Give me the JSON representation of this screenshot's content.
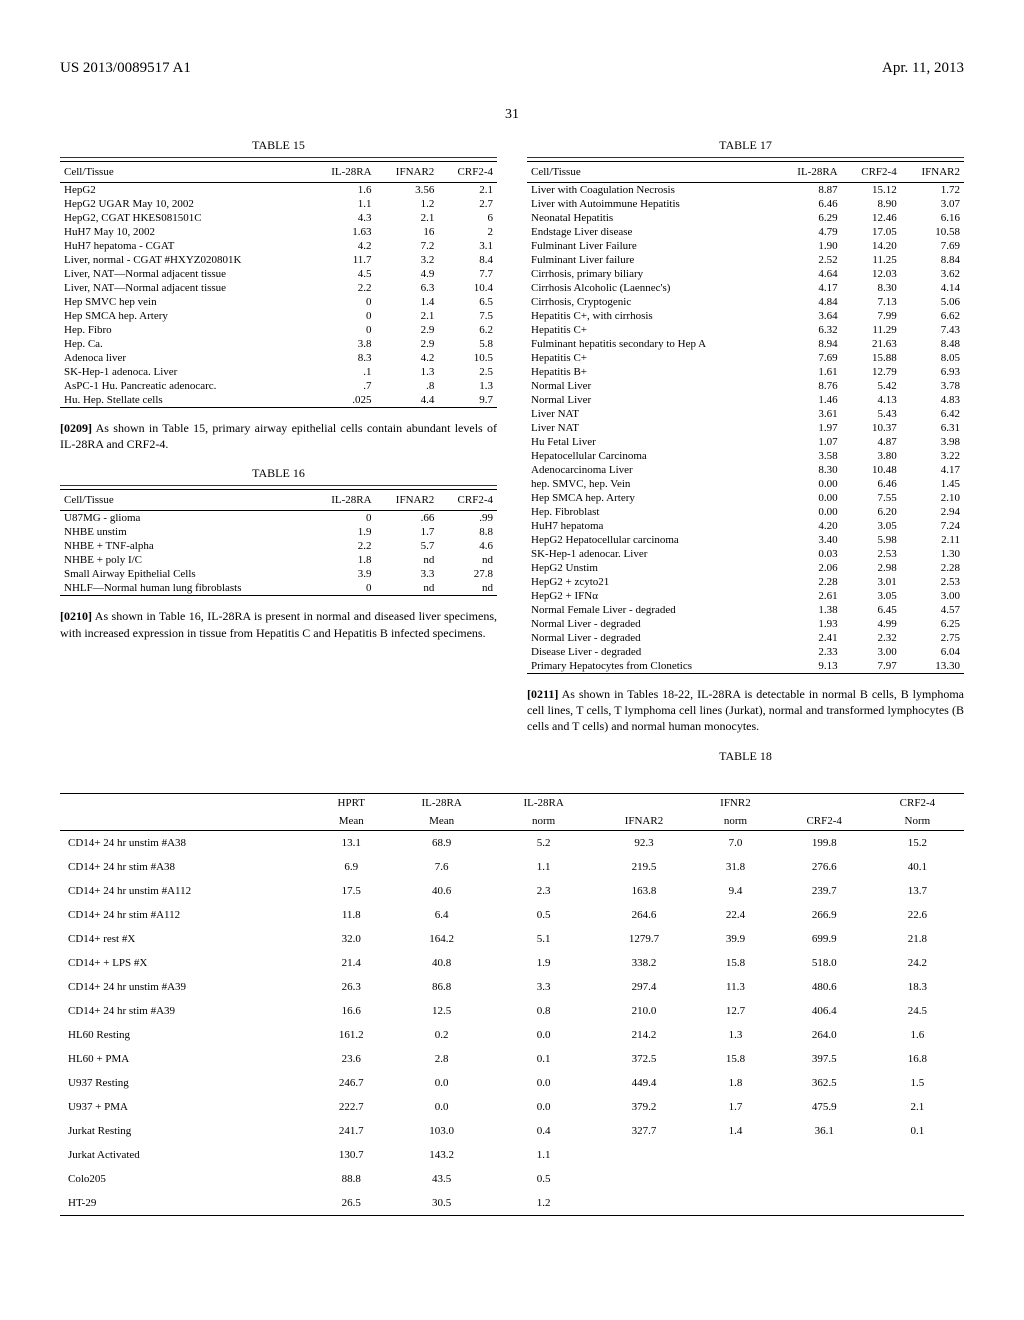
{
  "header": {
    "left": "US 2013/0089517 A1",
    "right": "Apr. 11, 2013"
  },
  "page_number": "31",
  "table15": {
    "title": "TABLE 15",
    "columns": [
      "Cell/Tissue",
      "IL-28RA",
      "IFNAR2",
      "CRF2-4"
    ],
    "rows": [
      [
        "HepG2",
        "1.6",
        "3.56",
        "2.1"
      ],
      [
        "HepG2 UGAR May 10, 2002",
        "1.1",
        "1.2",
        "2.7"
      ],
      [
        "HepG2, CGAT HKES081501C",
        "4.3",
        "2.1",
        "6"
      ],
      [
        "HuH7 May 10, 2002",
        "1.63",
        "16",
        "2"
      ],
      [
        "HuH7 hepatoma - CGAT",
        "4.2",
        "7.2",
        "3.1"
      ],
      [
        "Liver, normal - CGAT #HXYZ020801K",
        "11.7",
        "3.2",
        "8.4"
      ],
      [
        "Liver, NAT—Normal adjacent tissue",
        "4.5",
        "4.9",
        "7.7"
      ],
      [
        "Liver, NAT—Normal adjacent tissue",
        "2.2",
        "6.3",
        "10.4"
      ],
      [
        "Hep SMVC hep vein",
        "0",
        "1.4",
        "6.5"
      ],
      [
        "Hep SMCA hep. Artery",
        "0",
        "2.1",
        "7.5"
      ],
      [
        "Hep. Fibro",
        "0",
        "2.9",
        "6.2"
      ],
      [
        "Hep. Ca.",
        "3.8",
        "2.9",
        "5.8"
      ],
      [
        "Adenoca liver",
        "8.3",
        "4.2",
        "10.5"
      ],
      [
        "SK-Hep-1 adenoca. Liver",
        ".1",
        "1.3",
        "2.5"
      ],
      [
        "AsPC-1 Hu. Pancreatic adenocarc.",
        ".7",
        ".8",
        "1.3"
      ],
      [
        "Hu. Hep. Stellate cells",
        ".025",
        "4.4",
        "9.7"
      ]
    ]
  },
  "para209": {
    "num": "[0209]",
    "text": "As shown in Table 15, primary airway epithelial cells contain abundant levels of IL-28RA and CRF2-4."
  },
  "table16": {
    "title": "TABLE 16",
    "columns": [
      "Cell/Tissue",
      "IL-28RA",
      "IFNAR2",
      "CRF2-4"
    ],
    "rows": [
      [
        "U87MG - glioma",
        "0",
        ".66",
        ".99"
      ],
      [
        "NHBE unstim",
        "1.9",
        "1.7",
        "8.8"
      ],
      [
        "NHBE + TNF-alpha",
        "2.2",
        "5.7",
        "4.6"
      ],
      [
        "NHBE + poly I/C",
        "1.8",
        "nd",
        "nd"
      ],
      [
        "Small Airway Epithelial Cells",
        "3.9",
        "3.3",
        "27.8"
      ],
      [
        "NHLF—Normal human lung fibroblasts",
        "0",
        "nd",
        "nd"
      ]
    ]
  },
  "para210": {
    "num": "[0210]",
    "text": "As shown in Table 16, IL-28RA is present in normal and diseased liver specimens, with increased expression in tissue from Hepatitis C and Hepatitis B infected specimens."
  },
  "table17": {
    "title": "TABLE 17",
    "columns": [
      "Cell/Tissue",
      "IL-28RA",
      "CRF2-4",
      "IFNAR2"
    ],
    "rows": [
      [
        "Liver with Coagulation Necrosis",
        "8.87",
        "15.12",
        "1.72"
      ],
      [
        "Liver with Autoimmune Hepatitis",
        "6.46",
        "8.90",
        "3.07"
      ],
      [
        "Neonatal Hepatitis",
        "6.29",
        "12.46",
        "6.16"
      ],
      [
        "Endstage Liver disease",
        "4.79",
        "17.05",
        "10.58"
      ],
      [
        "Fulminant Liver Failure",
        "1.90",
        "14.20",
        "7.69"
      ],
      [
        "Fulminant Liver failure",
        "2.52",
        "11.25",
        "8.84"
      ],
      [
        "Cirrhosis, primary biliary",
        "4.64",
        "12.03",
        "3.62"
      ],
      [
        "Cirrhosis Alcoholic (Laennec's)",
        "4.17",
        "8.30",
        "4.14"
      ],
      [
        "Cirrhosis, Cryptogenic",
        "4.84",
        "7.13",
        "5.06"
      ],
      [
        "Hepatitis C+, with cirrhosis",
        "3.64",
        "7.99",
        "6.62"
      ],
      [
        "Hepatitis C+",
        "6.32",
        "11.29",
        "7.43"
      ],
      [
        "Fulminant hepatitis secondary to Hep A",
        "8.94",
        "21.63",
        "8.48"
      ],
      [
        "Hepatitis C+",
        "7.69",
        "15.88",
        "8.05"
      ],
      [
        "Hepatitis B+",
        "1.61",
        "12.79",
        "6.93"
      ],
      [
        "Normal Liver",
        "8.76",
        "5.42",
        "3.78"
      ],
      [
        "Normal Liver",
        "1.46",
        "4.13",
        "4.83"
      ],
      [
        "Liver NAT",
        "3.61",
        "5.43",
        "6.42"
      ],
      [
        "Liver NAT",
        "1.97",
        "10.37",
        "6.31"
      ],
      [
        "Hu Fetal Liver",
        "1.07",
        "4.87",
        "3.98"
      ],
      [
        "Hepatocellular Carcinoma",
        "3.58",
        "3.80",
        "3.22"
      ],
      [
        "Adenocarcinoma Liver",
        "8.30",
        "10.48",
        "4.17"
      ],
      [
        "hep. SMVC, hep. Vein",
        "0.00",
        "6.46",
        "1.45"
      ],
      [
        "Hep SMCA hep. Artery",
        "0.00",
        "7.55",
        "2.10"
      ],
      [
        "Hep. Fibroblast",
        "0.00",
        "6.20",
        "2.94"
      ],
      [
        "HuH7 hepatoma",
        "4.20",
        "3.05",
        "7.24"
      ],
      [
        "HepG2 Hepatocellular carcinoma",
        "3.40",
        "5.98",
        "2.11"
      ],
      [
        "SK-Hep-1 adenocar. Liver",
        "0.03",
        "2.53",
        "1.30"
      ],
      [
        "HepG2 Unstim",
        "2.06",
        "2.98",
        "2.28"
      ],
      [
        "HepG2 + zcyto21",
        "2.28",
        "3.01",
        "2.53"
      ],
      [
        "HepG2 + IFNα",
        "2.61",
        "3.05",
        "3.00"
      ],
      [
        "Normal Female Liver - degraded",
        "1.38",
        "6.45",
        "4.57"
      ],
      [
        "Normal Liver - degraded",
        "1.93",
        "4.99",
        "6.25"
      ],
      [
        "Normal Liver - degraded",
        "2.41",
        "2.32",
        "2.75"
      ],
      [
        "Disease Liver - degraded",
        "2.33",
        "3.00",
        "6.04"
      ],
      [
        "Primary Hepatocytes from Clonetics",
        "9.13",
        "7.97",
        "13.30"
      ]
    ]
  },
  "para211": {
    "num": "[0211]",
    "text": "As shown in Tables 18-22, IL-28RA is detectable in normal B cells, B lymphoma cell lines, T cells, T lymphoma cell lines (Jurkat), normal and transformed lymphocytes (B cells and T cells) and normal human monocytes."
  },
  "table18": {
    "title": "TABLE 18",
    "header_row1": [
      "",
      "HPRT",
      "IL-28RA",
      "IL-28RA",
      "",
      "IFNR2",
      "",
      "CRF2-4"
    ],
    "header_row2": [
      "",
      "Mean",
      "Mean",
      "norm",
      "IFNAR2",
      "norm",
      "CRF2-4",
      "Norm"
    ],
    "rows": [
      [
        "CD14+ 24 hr unstim #A38",
        "13.1",
        "68.9",
        "5.2",
        "92.3",
        "7.0",
        "199.8",
        "15.2"
      ],
      [
        "CD14+ 24 hr stim #A38",
        "6.9",
        "7.6",
        "1.1",
        "219.5",
        "31.8",
        "276.6",
        "40.1"
      ],
      [
        "CD14+ 24 hr unstim #A112",
        "17.5",
        "40.6",
        "2.3",
        "163.8",
        "9.4",
        "239.7",
        "13.7"
      ],
      [
        "CD14+ 24 hr stim #A112",
        "11.8",
        "6.4",
        "0.5",
        "264.6",
        "22.4",
        "266.9",
        "22.6"
      ],
      [
        "CD14+ rest #X",
        "32.0",
        "164.2",
        "5.1",
        "1279.7",
        "39.9",
        "699.9",
        "21.8"
      ],
      [
        "CD14+ + LPS #X",
        "21.4",
        "40.8",
        "1.9",
        "338.2",
        "15.8",
        "518.0",
        "24.2"
      ],
      [
        "CD14+ 24 hr unstim #A39",
        "26.3",
        "86.8",
        "3.3",
        "297.4",
        "11.3",
        "480.6",
        "18.3"
      ],
      [
        "CD14+ 24 hr stim #A39",
        "16.6",
        "12.5",
        "0.8",
        "210.0",
        "12.7",
        "406.4",
        "24.5"
      ],
      [
        "HL60 Resting",
        "161.2",
        "0.2",
        "0.0",
        "214.2",
        "1.3",
        "264.0",
        "1.6"
      ],
      [
        "HL60 + PMA",
        "23.6",
        "2.8",
        "0.1",
        "372.5",
        "15.8",
        "397.5",
        "16.8"
      ],
      [
        "U937 Resting",
        "246.7",
        "0.0",
        "0.0",
        "449.4",
        "1.8",
        "362.5",
        "1.5"
      ],
      [
        "U937 + PMA",
        "222.7",
        "0.0",
        "0.0",
        "379.2",
        "1.7",
        "475.9",
        "2.1"
      ],
      [
        "Jurkat Resting",
        "241.7",
        "103.0",
        "0.4",
        "327.7",
        "1.4",
        "36.1",
        "0.1"
      ],
      [
        "Jurkat Activated",
        "130.7",
        "143.2",
        "1.1",
        "",
        "",
        "",
        ""
      ],
      [
        "Colo205",
        "88.8",
        "43.5",
        "0.5",
        "",
        "",
        "",
        ""
      ],
      [
        "HT-29",
        "26.5",
        "30.5",
        "1.2",
        "",
        "",
        "",
        ""
      ]
    ]
  }
}
